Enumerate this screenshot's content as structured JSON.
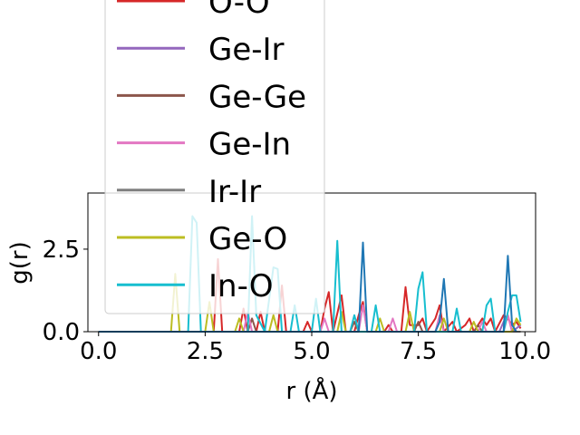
{
  "chart_data": {
    "type": "line",
    "xlabel": "r (Å)",
    "ylabel": "g(r)",
    "xlim": [
      -0.25,
      10.25
    ],
    "ylim": [
      0,
      4.2
    ],
    "xticks": [
      0.0,
      2.5,
      5.0,
      7.5,
      10.0
    ],
    "xtick_labels": [
      "0.0",
      "2.5",
      "5.0",
      "7.5",
      "10.0"
    ],
    "yticks": [
      0.0,
      2.5
    ],
    "ytick_labels": [
      "0.0",
      "2.5"
    ],
    "grid": false,
    "legend_position": "upper-left",
    "series": [
      {
        "name": "O-O",
        "color": "#d62728",
        "points": [
          [
            0,
            0
          ],
          [
            2.7,
            0
          ],
          [
            2.8,
            2.2
          ],
          [
            2.9,
            0
          ],
          [
            3.3,
            0
          ],
          [
            3.4,
            0.7
          ],
          [
            3.5,
            0
          ],
          [
            3.7,
            0
          ],
          [
            3.8,
            0.6
          ],
          [
            3.9,
            0
          ],
          [
            4.2,
            0
          ],
          [
            4.3,
            1.4
          ],
          [
            4.4,
            0
          ],
          [
            4.8,
            0
          ],
          [
            4.9,
            0.3
          ],
          [
            5.0,
            0
          ],
          [
            5.2,
            0
          ],
          [
            5.3,
            0.7
          ],
          [
            5.4,
            1.2
          ],
          [
            5.5,
            0
          ],
          [
            5.7,
            1.1
          ],
          [
            5.8,
            0
          ],
          [
            6.0,
            0
          ],
          [
            6.1,
            0.5
          ],
          [
            6.2,
            0.9
          ],
          [
            6.3,
            0
          ],
          [
            6.7,
            0
          ],
          [
            6.8,
            0.2
          ],
          [
            6.9,
            0
          ],
          [
            7.1,
            0
          ],
          [
            7.2,
            1.35
          ],
          [
            7.3,
            0.2
          ],
          [
            7.5,
            0.2
          ],
          [
            7.6,
            0.4
          ],
          [
            7.7,
            0
          ],
          [
            7.9,
            0.4
          ],
          [
            8.0,
            0.8
          ],
          [
            8.1,
            0
          ],
          [
            8.3,
            0.3
          ],
          [
            8.4,
            0
          ],
          [
            8.6,
            0.2
          ],
          [
            8.7,
            0.4
          ],
          [
            8.8,
            0
          ],
          [
            9.0,
            0.4
          ],
          [
            9.1,
            0.2
          ],
          [
            9.2,
            0.4
          ],
          [
            9.3,
            0
          ],
          [
            9.5,
            0.5
          ],
          [
            9.6,
            0.4
          ],
          [
            9.7,
            0.2
          ],
          [
            9.8,
            0.3
          ],
          [
            9.9,
            0.1
          ]
        ]
      },
      {
        "name": "Ge-Ir",
        "color": "#9467bd",
        "points": [
          [
            0,
            0
          ],
          [
            9.4,
            0
          ],
          [
            9.5,
            0.3
          ],
          [
            9.6,
            0.5
          ],
          [
            9.7,
            0
          ],
          [
            9.9,
            0.2
          ]
        ]
      },
      {
        "name": "Ge-Ge",
        "color": "#8c564b",
        "points": [
          [
            0,
            0
          ],
          [
            3.5,
            0
          ],
          [
            3.6,
            0.4
          ],
          [
            3.7,
            0
          ],
          [
            5.9,
            0
          ],
          [
            6.0,
            0.3
          ],
          [
            6.1,
            0
          ],
          [
            7.4,
            0
          ],
          [
            7.5,
            0.3
          ],
          [
            7.6,
            0
          ],
          [
            8.8,
            0
          ],
          [
            8.9,
            0.2
          ],
          [
            9.0,
            0
          ]
        ]
      },
      {
        "name": "Ge-In",
        "color": "#e377c2",
        "points": [
          [
            0,
            0
          ],
          [
            3.4,
            0
          ],
          [
            3.5,
            0.6
          ],
          [
            3.6,
            0
          ],
          [
            5.2,
            0
          ],
          [
            5.3,
            0.4
          ],
          [
            5.4,
            0
          ],
          [
            6.1,
            0
          ],
          [
            6.2,
            0.8
          ],
          [
            6.3,
            0
          ],
          [
            6.8,
            0
          ],
          [
            6.9,
            0.4
          ],
          [
            7.0,
            0
          ],
          [
            7.9,
            0
          ],
          [
            8.0,
            0.5
          ],
          [
            8.1,
            0
          ],
          [
            8.9,
            0
          ],
          [
            9.0,
            0.3
          ],
          [
            9.1,
            0
          ],
          [
            9.5,
            0
          ],
          [
            9.6,
            0.5
          ],
          [
            9.7,
            0
          ]
        ]
      },
      {
        "name": "Ir-Ir",
        "color": "#7f7f7f",
        "points": [
          [
            0,
            0
          ],
          [
            9.9,
            0
          ]
        ]
      },
      {
        "name": "Ge-O",
        "color": "#bcbd22",
        "points": [
          [
            0,
            0
          ],
          [
            1.7,
            0
          ],
          [
            1.8,
            1.75
          ],
          [
            1.9,
            0
          ],
          [
            2.5,
            0
          ],
          [
            2.6,
            0.9
          ],
          [
            2.7,
            0
          ],
          [
            3.2,
            0
          ],
          [
            3.3,
            0.4
          ],
          [
            3.4,
            0
          ],
          [
            4.0,
            0
          ],
          [
            4.1,
            0.5
          ],
          [
            4.2,
            0
          ],
          [
            5.6,
            0
          ],
          [
            5.7,
            0.6
          ],
          [
            5.8,
            0
          ],
          [
            6.5,
            0
          ],
          [
            6.6,
            0.4
          ],
          [
            6.7,
            0
          ],
          [
            7.2,
            0
          ],
          [
            7.3,
            0.6
          ],
          [
            7.4,
            0
          ],
          [
            8.0,
            0
          ],
          [
            8.1,
            0.4
          ],
          [
            8.2,
            0
          ],
          [
            8.7,
            0
          ],
          [
            8.8,
            0.3
          ],
          [
            8.9,
            0
          ],
          [
            9.7,
            0
          ],
          [
            9.8,
            0.4
          ],
          [
            9.9,
            0.2
          ]
        ]
      },
      {
        "name": "In-O",
        "color": "#17becf",
        "points": [
          [
            0,
            0
          ],
          [
            2.1,
            0
          ],
          [
            2.2,
            3.5
          ],
          [
            2.3,
            3.3
          ],
          [
            2.4,
            0
          ],
          [
            3.5,
            0
          ],
          [
            3.6,
            3.5
          ],
          [
            3.7,
            0.5
          ],
          [
            3.9,
            0
          ],
          [
            4.1,
            1.95
          ],
          [
            4.2,
            1.9
          ],
          [
            4.3,
            0
          ],
          [
            4.5,
            0
          ],
          [
            4.6,
            0.8
          ],
          [
            4.7,
            0
          ],
          [
            5.0,
            0
          ],
          [
            5.1,
            1.0
          ],
          [
            5.2,
            0
          ],
          [
            5.5,
            0
          ],
          [
            5.6,
            2.75
          ],
          [
            5.7,
            0
          ],
          [
            5.9,
            0
          ],
          [
            6.0,
            0.5
          ],
          [
            6.1,
            0
          ],
          [
            6.4,
            0
          ],
          [
            6.5,
            0.8
          ],
          [
            6.6,
            0
          ],
          [
            7.4,
            0
          ],
          [
            7.5,
            1.3
          ],
          [
            7.6,
            1.8
          ],
          [
            7.7,
            0
          ],
          [
            8.3,
            0
          ],
          [
            8.4,
            0.7
          ],
          [
            8.5,
            0
          ],
          [
            9.0,
            0
          ],
          [
            9.1,
            0.8
          ],
          [
            9.2,
            1.0
          ],
          [
            9.3,
            0
          ],
          [
            9.5,
            0
          ],
          [
            9.6,
            0.6
          ],
          [
            9.7,
            1.1
          ],
          [
            9.8,
            1.1
          ],
          [
            9.9,
            0.3
          ]
        ]
      },
      {
        "name": "",
        "color": "#1f77b4",
        "points": [
          [
            0,
            0
          ],
          [
            6.1,
            0
          ],
          [
            6.2,
            2.7
          ],
          [
            6.3,
            0
          ],
          [
            7.9,
            0
          ],
          [
            8.0,
            0.3
          ],
          [
            8.1,
            1.6
          ],
          [
            8.2,
            0
          ],
          [
            9.5,
            0
          ],
          [
            9.6,
            2.3
          ],
          [
            9.7,
            0.2
          ],
          [
            9.8,
            0
          ]
        ]
      }
    ],
    "legend": [
      {
        "label": "O-O",
        "color": "#d62728"
      },
      {
        "label": "Ge-Ir",
        "color": "#9467bd"
      },
      {
        "label": "Ge-Ge",
        "color": "#8c564b"
      },
      {
        "label": "Ge-In",
        "color": "#e377c2"
      },
      {
        "label": "Ir-Ir",
        "color": "#7f7f7f"
      },
      {
        "label": "Ge-O",
        "color": "#bcbd22"
      },
      {
        "label": "In-O",
        "color": "#17becf"
      }
    ]
  }
}
